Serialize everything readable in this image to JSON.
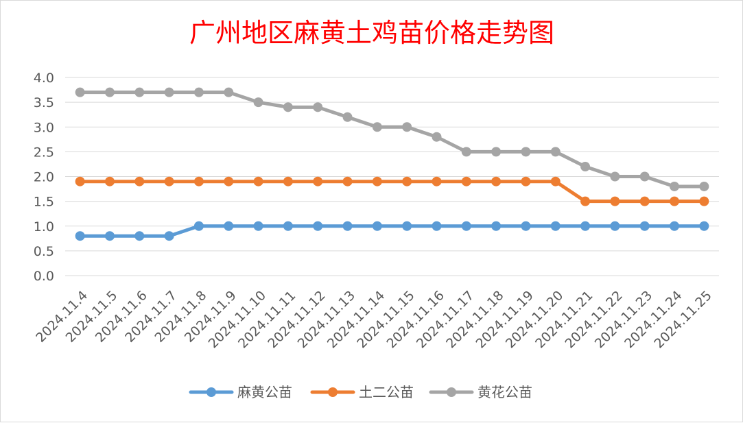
{
  "chart_data": {
    "type": "line",
    "title": "广州地区麻黄土鸡苗价格走势图",
    "xlabel": "",
    "ylabel": "",
    "categories": [
      "2024.11.4",
      "2024.11.5",
      "2024.11.6",
      "2024.11.7",
      "2024.11.8",
      "2024.11.9",
      "2024.11.10",
      "2024.11.11",
      "2024.11.12",
      "2024.11.13",
      "2024.11.14",
      "2024.11.15",
      "2024.11.16",
      "2024.11.17",
      "2024.11.18",
      "2024.11.19",
      "2024.11.20",
      "2024.11.21",
      "2024.11.22",
      "2024.11.23",
      "2024.11.24",
      "2024.11.25"
    ],
    "ylim": [
      0,
      4
    ],
    "yticks": [
      "0.0",
      "0.5",
      "1.0",
      "1.5",
      "2.0",
      "2.5",
      "3.0",
      "3.5",
      "4.0"
    ],
    "grid": true,
    "legend_position": "bottom",
    "series": [
      {
        "name": "麻黄公苗",
        "color": "#5b9bd5",
        "values": [
          0.8,
          0.8,
          0.8,
          0.8,
          1.0,
          1.0,
          1.0,
          1.0,
          1.0,
          1.0,
          1.0,
          1.0,
          1.0,
          1.0,
          1.0,
          1.0,
          1.0,
          1.0,
          1.0,
          1.0,
          1.0,
          1.0
        ]
      },
      {
        "name": "土二公苗",
        "color": "#ed7d31",
        "values": [
          1.9,
          1.9,
          1.9,
          1.9,
          1.9,
          1.9,
          1.9,
          1.9,
          1.9,
          1.9,
          1.9,
          1.9,
          1.9,
          1.9,
          1.9,
          1.9,
          1.9,
          1.5,
          1.5,
          1.5,
          1.5,
          1.5
        ]
      },
      {
        "name": "黄花公苗",
        "color": "#a5a5a5",
        "values": [
          3.7,
          3.7,
          3.7,
          3.7,
          3.7,
          3.7,
          3.5,
          3.4,
          3.4,
          3.2,
          3.0,
          3.0,
          2.8,
          2.5,
          2.5,
          2.5,
          2.5,
          2.2,
          2.0,
          2.0,
          1.8,
          1.8
        ]
      }
    ]
  }
}
